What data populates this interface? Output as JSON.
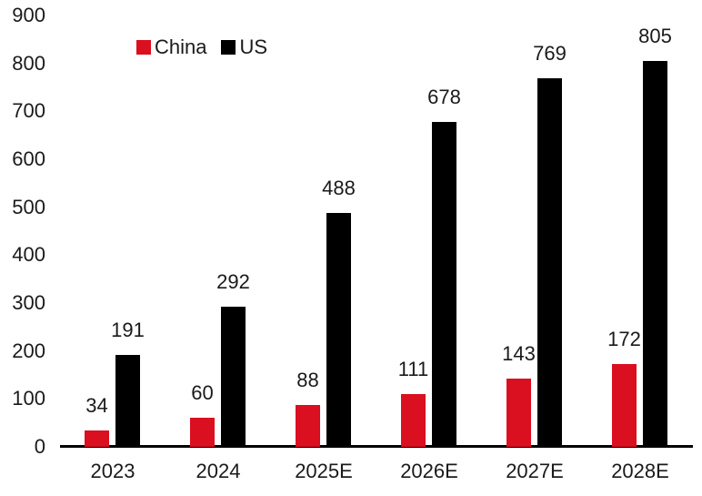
{
  "chart_data": {
    "type": "bar",
    "title": "",
    "xlabel": "",
    "ylabel": "",
    "categories": [
      "2023",
      "2024",
      "2025E",
      "2026E",
      "2027E",
      "2028E"
    ],
    "series": [
      {
        "name": "China",
        "color": "#da0f1f",
        "values": [
          34,
          60,
          88,
          111,
          143,
          172
        ]
      },
      {
        "name": "US",
        "color": "#000000",
        "values": [
          191,
          292,
          488,
          678,
          769,
          805
        ]
      }
    ],
    "ylim": [
      0,
      900
    ],
    "yticks": [
      0,
      100,
      200,
      300,
      400,
      500,
      600,
      700,
      800,
      900
    ],
    "grid": false,
    "legend_position": "top-left",
    "value_labels": true,
    "axis_color": "#000000",
    "text_color": "#1a1a1a"
  }
}
